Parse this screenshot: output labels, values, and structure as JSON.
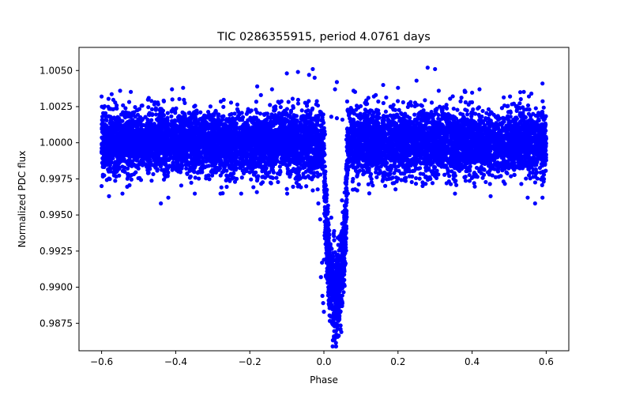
{
  "chart_data": {
    "type": "scatter",
    "title": "TIC 0286355915, period 4.0761 days",
    "xlabel": "Phase",
    "ylabel": "Normalized PDC flux",
    "xlim": [
      -0.661,
      0.661
    ],
    "ylim": [
      0.9856,
      1.0066
    ],
    "xticks": [
      -0.6,
      -0.4,
      -0.2,
      0.0,
      0.2,
      0.4,
      0.6
    ],
    "xtick_labels": [
      "−0.6",
      "−0.4",
      "−0.2",
      "0.0",
      "0.2",
      "0.4",
      "0.6"
    ],
    "yticks": [
      0.9875,
      0.99,
      0.9925,
      0.995,
      0.9975,
      1.0,
      1.0025,
      1.005
    ],
    "ytick_labels": [
      "0.9875",
      "0.9900",
      "0.9925",
      "0.9950",
      "0.9975",
      "1.0000",
      "1.0025",
      "1.0050"
    ],
    "grid": false,
    "series": [
      {
        "color": "#0000ff",
        "marker": "circle",
        "phase_range": [
          -0.6,
          0.6
        ],
        "baseline_flux": 1.0,
        "baseline_scatter_sd": 0.0011,
        "baseline_extremes": [
          0.9958,
          1.0051
        ],
        "transit": {
          "ingress_start": 0.0,
          "egress_end": 0.063,
          "center": 0.035,
          "min_flux": 0.9864,
          "typical_bottom_flux": 0.9895
        },
        "points": [
          {
            "x": -0.6,
            "y": 1.0032
          },
          {
            "x": -0.6,
            "y": 0.997
          },
          {
            "x": -0.55,
            "y": 1.0036
          },
          {
            "x": -0.58,
            "y": 0.9963
          },
          {
            "x": -0.44,
            "y": 0.9958
          },
          {
            "x": -0.42,
            "y": 0.9962
          },
          {
            "x": -0.41,
            "y": 1.0037
          },
          {
            "x": -0.38,
            "y": 1.0038
          },
          {
            "x": -0.18,
            "y": 1.0039
          },
          {
            "x": -0.14,
            "y": 1.0037
          },
          {
            "x": -0.17,
            "y": 1.0033
          },
          {
            "x": -0.07,
            "y": 1.0049
          },
          {
            "x": -0.1,
            "y": 1.0048
          },
          {
            "x": -0.03,
            "y": 1.0051
          },
          {
            "x": -0.04,
            "y": 1.0047
          },
          {
            "x": -0.025,
            "y": 1.0045
          },
          {
            "x": -0.1,
            "y": 0.9968
          },
          {
            "x": -0.03,
            "y": 0.9967
          },
          {
            "x": 0.03,
            "y": 1.0037
          },
          {
            "x": 0.035,
            "y": 1.0042
          },
          {
            "x": 0.08,
            "y": 1.0036
          },
          {
            "x": 0.09,
            "y": 0.9967
          },
          {
            "x": 0.14,
            "y": 1.0033
          },
          {
            "x": 0.16,
            "y": 1.004
          },
          {
            "x": 0.2,
            "y": 1.0038
          },
          {
            "x": 0.25,
            "y": 1.0043
          },
          {
            "x": 0.28,
            "y": 1.0052
          },
          {
            "x": 0.3,
            "y": 1.0051
          },
          {
            "x": 0.31,
            "y": 1.0036
          },
          {
            "x": 0.35,
            "y": 0.9975
          },
          {
            "x": 0.38,
            "y": 1.0036
          },
          {
            "x": 0.42,
            "y": 1.0037
          },
          {
            "x": 0.45,
            "y": 0.9963
          },
          {
            "x": 0.53,
            "y": 1.0035
          },
          {
            "x": 0.55,
            "y": 0.9962
          },
          {
            "x": 0.56,
            "y": 1.0034
          },
          {
            "x": 0.57,
            "y": 0.9958
          },
          {
            "x": 0.59,
            "y": 1.0041
          },
          {
            "x": 0.59,
            "y": 0.9962
          },
          {
            "x": -0.015,
            "y": 0.9958
          },
          {
            "x": -0.01,
            "y": 0.9947
          },
          {
            "x": 0.0,
            "y": 0.9919
          },
          {
            "x": -0.005,
            "y": 0.9917
          },
          {
            "x": -0.008,
            "y": 0.9907
          },
          {
            "x": -0.004,
            "y": 0.9894
          },
          {
            "x": -0.002,
            "y": 0.9889
          },
          {
            "x": 0.0,
            "y": 0.9883
          },
          {
            "x": 0.01,
            "y": 0.9936
          },
          {
            "x": 0.015,
            "y": 0.9905
          },
          {
            "x": 0.02,
            "y": 0.9895
          },
          {
            "x": 0.025,
            "y": 0.988
          },
          {
            "x": 0.027,
            "y": 0.9866
          },
          {
            "x": 0.029,
            "y": 0.9864
          },
          {
            "x": 0.032,
            "y": 0.9885
          },
          {
            "x": 0.036,
            "y": 0.9879
          },
          {
            "x": 0.04,
            "y": 0.9885
          },
          {
            "x": 0.045,
            "y": 0.9871
          },
          {
            "x": 0.047,
            "y": 0.9869
          },
          {
            "x": 0.05,
            "y": 0.9889
          },
          {
            "x": 0.055,
            "y": 0.9905
          },
          {
            "x": 0.06,
            "y": 0.9934
          },
          {
            "x": 0.063,
            "y": 0.9978
          },
          {
            "x": 0.02,
            "y": 1.0018
          },
          {
            "x": 0.035,
            "y": 1.0017
          },
          {
            "x": 0.05,
            "y": 1.0016
          }
        ]
      }
    ]
  }
}
